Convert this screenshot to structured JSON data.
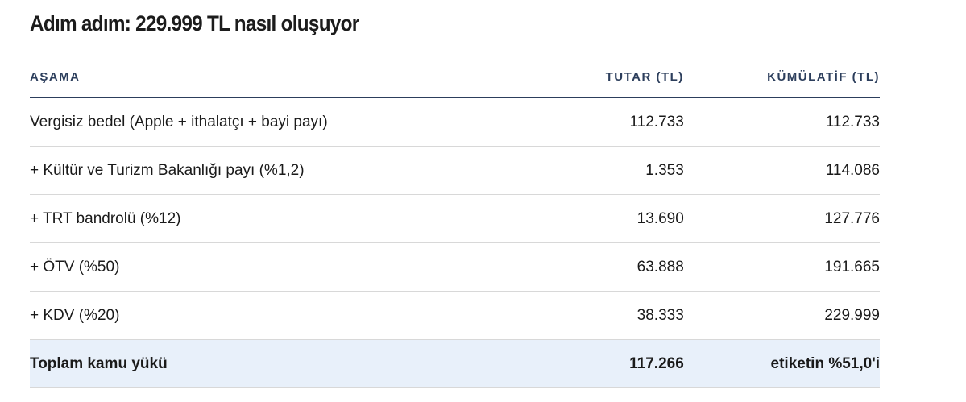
{
  "title": "Adım adım: 229.999 TL nasıl oluşuyor",
  "table": {
    "header": [
      "AŞAMA",
      "TUTAR (TL)",
      "KÜMÜLATİF (TL)"
    ],
    "rows": [
      [
        "Vergisiz bedel (Apple + ithalatçı + bayi payı)",
        "112.733",
        "112.733"
      ],
      [
        "+ Kültür ve Turizm Bakanlığı payı (%1,2)",
        "1.353",
        "114.086"
      ],
      [
        "+ TRT bandrolü (%12)",
        "13.690",
        "127.776"
      ],
      [
        "+ ÖTV (%50)",
        "63.888",
        "191.665"
      ],
      [
        "+ KDV (%20)",
        "38.333",
        "229.999"
      ]
    ],
    "footer": [
      "Toplam kamu yükü",
      "117.266",
      "etiketin %51,0'i"
    ]
  }
}
